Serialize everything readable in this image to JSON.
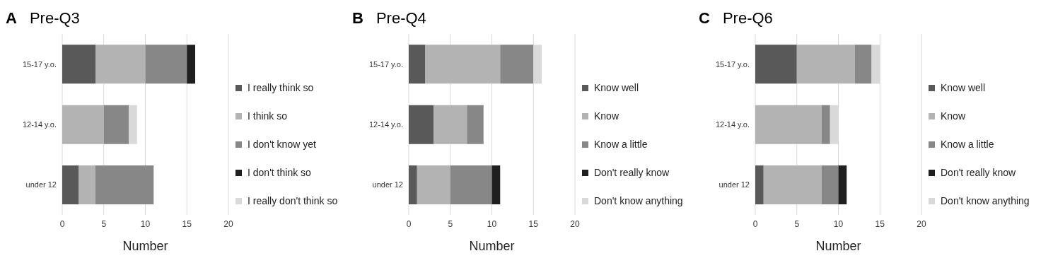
{
  "chart_data": [
    {
      "type": "bar",
      "orientation": "horizontal",
      "stacked": true,
      "title": "Pre-Q3",
      "xlabel": "Number",
      "annotations": [
        "A"
      ],
      "categories": [
        "15-17 y.o.",
        "12-14 y.o.",
        "under 12"
      ],
      "xlim": [
        0,
        20
      ],
      "xticks": [
        0,
        5,
        10,
        15,
        20
      ],
      "grid": "x",
      "legend": "right",
      "series": [
        {
          "name": "I really think so",
          "color": "#595959",
          "values": [
            4,
            0,
            2
          ]
        },
        {
          "name": "I think so",
          "color": "#b3b3b3",
          "values": [
            6,
            5,
            2
          ]
        },
        {
          "name": "I don't know yet",
          "color": "#878787",
          "values": [
            5,
            3,
            7
          ]
        },
        {
          "name": "I don't think so",
          "color": "#1f1f1f",
          "values": [
            1,
            0,
            0
          ]
        },
        {
          "name": "I really don't think so",
          "color": "#d9d9d9",
          "values": [
            0,
            1,
            0
          ]
        }
      ]
    },
    {
      "type": "bar",
      "orientation": "horizontal",
      "stacked": true,
      "title": "Pre-Q4",
      "xlabel": "Number",
      "annotations": [
        "B"
      ],
      "categories": [
        "15-17 y.o.",
        "12-14 y.o.",
        "under 12"
      ],
      "xlim": [
        0,
        20
      ],
      "xticks": [
        0,
        5,
        10,
        15,
        20
      ],
      "grid": "x",
      "legend": "right",
      "series": [
        {
          "name": "Know well",
          "color": "#595959",
          "values": [
            2,
            3,
            1
          ]
        },
        {
          "name": "Know",
          "color": "#b3b3b3",
          "values": [
            9,
            4,
            4
          ]
        },
        {
          "name": "Know a little",
          "color": "#878787",
          "values": [
            4,
            2,
            5
          ]
        },
        {
          "name": "Don't really know",
          "color": "#1f1f1f",
          "values": [
            0,
            0,
            1
          ]
        },
        {
          "name": "Don't know anything",
          "color": "#d9d9d9",
          "values": [
            1,
            0,
            0
          ]
        }
      ]
    },
    {
      "type": "bar",
      "orientation": "horizontal",
      "stacked": true,
      "title": "Pre-Q6",
      "xlabel": "Number",
      "annotations": [
        "C"
      ],
      "categories": [
        "15-17 y.o.",
        "12-14 y.o.",
        "under 12"
      ],
      "xlim": [
        0,
        20
      ],
      "xticks": [
        0,
        5,
        10,
        15,
        20
      ],
      "grid": "x",
      "legend": "right",
      "series": [
        {
          "name": "Know well",
          "color": "#595959",
          "values": [
            5,
            0,
            1
          ]
        },
        {
          "name": "Know",
          "color": "#b3b3b3",
          "values": [
            7,
            8,
            7
          ]
        },
        {
          "name": "Know a little",
          "color": "#878787",
          "values": [
            2,
            1,
            2
          ]
        },
        {
          "name": "Don't really know",
          "color": "#1f1f1f",
          "values": [
            0,
            0,
            1
          ]
        },
        {
          "name": "Don't know anything",
          "color": "#d9d9d9",
          "values": [
            1,
            1,
            0
          ]
        }
      ]
    }
  ]
}
